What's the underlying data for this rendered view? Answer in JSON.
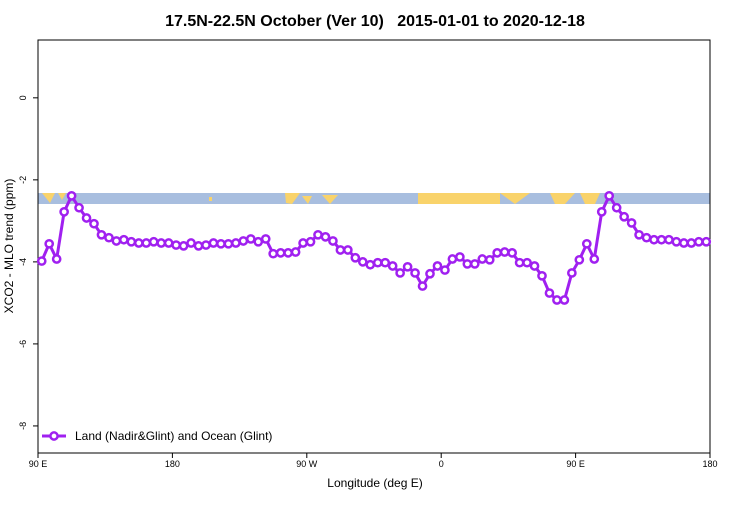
{
  "chart_data": {
    "type": "line",
    "title": "17.5N-22.5N October (Ver 10)   2015-01-01 to 2020-12-18",
    "xlabel": "Longitude (deg E)",
    "ylabel": "XCO2 - MLO trend (ppm)",
    "x": [
      92.5,
      97.5,
      102.5,
      107.5,
      112.5,
      117.5,
      122.5,
      127.5,
      132.5,
      137.5,
      142.5,
      147.5,
      152.5,
      157.5,
      162.5,
      167.5,
      172.5,
      177.5,
      182.5,
      187.5,
      192.5,
      197.5,
      202.5,
      207.5,
      212.5,
      217.5,
      222.5,
      227.5,
      232.5,
      237.5,
      242.5,
      247.5,
      252.5,
      257.5,
      262.5,
      267.5,
      272.5,
      277.5,
      282.5,
      287.5,
      292.5,
      297.5,
      302.5,
      307.5,
      312.5,
      317.5,
      322.5,
      327.5,
      332.5,
      337.5,
      342.5,
      347.5,
      352.5,
      357.5,
      362.5,
      367.5,
      372.5,
      377.5,
      382.5,
      387.5,
      392.5,
      397.5,
      402.5,
      407.5,
      412.5,
      417.5,
      422.5,
      427.5,
      432.5,
      437.5,
      442.5,
      447.5,
      452.5,
      457.5,
      462.5,
      467.5,
      472.5,
      477.5,
      482.5,
      487.5,
      492.5,
      497.5,
      502.5,
      507.5,
      512.5,
      517.5,
      522.5,
      527.5,
      532.5,
      537.5
    ],
    "series": [
      {
        "name": "Land (Nadir&Glint) and Ocean (Glint)",
        "color": "#a020f0",
        "values": [
          -3.98,
          -3.56,
          -3.93,
          -2.78,
          -2.39,
          -2.68,
          -2.93,
          -3.07,
          -3.34,
          -3.41,
          -3.49,
          -3.46,
          -3.51,
          -3.54,
          -3.54,
          -3.51,
          -3.54,
          -3.54,
          -3.59,
          -3.61,
          -3.54,
          -3.61,
          -3.59,
          -3.54,
          -3.56,
          -3.56,
          -3.54,
          -3.49,
          -3.44,
          -3.51,
          -3.44,
          -3.8,
          -3.78,
          -3.78,
          -3.76,
          -3.54,
          -3.51,
          -3.34,
          -3.39,
          -3.49,
          -3.71,
          -3.71,
          -3.9,
          -4.0,
          -4.07,
          -4.02,
          -4.02,
          -4.1,
          -4.27,
          -4.12,
          -4.27,
          -4.59,
          -4.29,
          -4.1,
          -4.2,
          -3.93,
          -3.88,
          -4.05,
          -4.05,
          -3.93,
          -3.95,
          -3.78,
          -3.76,
          -3.78,
          -4.02,
          -4.02,
          -4.1,
          -4.34,
          -4.76,
          -4.93,
          -4.93,
          -4.27,
          -3.95,
          -3.56,
          -3.93,
          -2.78,
          -2.39,
          -2.68,
          -2.9,
          -3.05,
          -3.34,
          -3.41,
          -3.46,
          -3.46,
          -3.46,
          -3.51,
          -3.54,
          -3.54,
          -3.51,
          -3.51
        ]
      }
    ],
    "xlim": [
      90,
      540
    ],
    "xticks": [
      {
        "value": 90,
        "label": "90 E"
      },
      180,
      {
        "value": 270,
        "label": "90 W"
      },
      {
        "value": 360,
        "label": "0"
      },
      {
        "value": 450,
        "label": "90 E"
      },
      {
        "value": 540,
        "label": "180"
      }
    ],
    "ylim": [
      -8.66,
      1.41
    ],
    "yticks": [
      0,
      -2,
      -4,
      -6,
      -8
    ],
    "legend": "bottom-left"
  }
}
